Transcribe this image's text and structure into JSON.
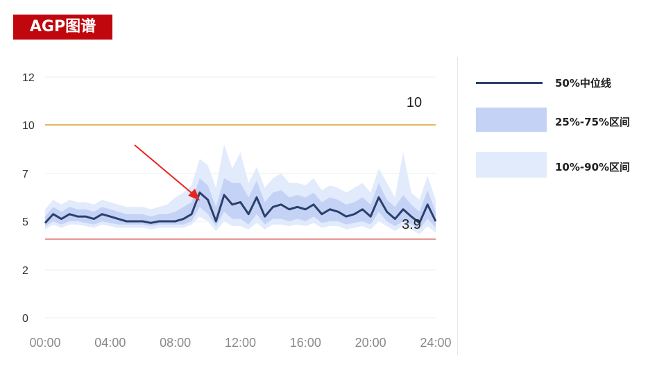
{
  "title": "AGP图谱",
  "colors": {
    "badge": "#c0070d",
    "median": "#2b3f6b",
    "iqr": "#c4d3f5",
    "outer": "#e1ebfc",
    "upper_line": "#e3b85b",
    "lower_line": "#d64a4a",
    "arrow": "#e8251d"
  },
  "legend": {
    "median": "50%中位线",
    "iqr": "25%-75%区间",
    "outer": "10%-90%区间"
  },
  "chart_data": {
    "type": "area",
    "xlabel": "",
    "ylabel": "",
    "x_ticks": [
      "00:00",
      "04:00",
      "08:00",
      "12:00",
      "16:00",
      "20:00",
      "24:00"
    ],
    "y_ticks": [
      "0",
      "2",
      "5",
      "7",
      "10",
      "12"
    ],
    "target_upper": 10,
    "target_lower": 3.9,
    "upper_label": "10",
    "lower_label": "3.9",
    "annotation": "arrow pointing to 09:40 rise",
    "series": [
      {
        "name": "50%中位线",
        "x": [
          "00:00",
          "00:30",
          "01:00",
          "01:30",
          "02:00",
          "02:30",
          "03:00",
          "03:30",
          "04:00",
          "04:30",
          "05:00",
          "05:30",
          "06:00",
          "06:30",
          "07:00",
          "07:30",
          "08:00",
          "08:30",
          "09:00",
          "09:30",
          "10:00",
          "10:30",
          "11:00",
          "11:30",
          "12:00",
          "12:30",
          "13:00",
          "13:30",
          "14:00",
          "14:30",
          "15:00",
          "15:30",
          "16:00",
          "16:30",
          "17:00",
          "17:30",
          "18:00",
          "18:30",
          "19:00",
          "19:30",
          "20:00",
          "20:30",
          "21:00",
          "21:30",
          "22:00",
          "22:30",
          "23:00",
          "23:30",
          "24:00"
        ],
        "values": [
          4.9,
          5.3,
          5.1,
          5.3,
          5.2,
          5.2,
          5.1,
          5.3,
          5.2,
          5.1,
          5.0,
          5.0,
          5.0,
          4.9,
          5.0,
          5.0,
          5.0,
          5.1,
          5.3,
          6.2,
          5.9,
          5.0,
          6.1,
          5.7,
          5.8,
          5.3,
          6.0,
          5.2,
          5.6,
          5.7,
          5.5,
          5.6,
          5.5,
          5.7,
          5.3,
          5.5,
          5.4,
          5.2,
          5.3,
          5.5,
          5.2,
          6.0,
          5.4,
          5.1,
          5.5,
          5.2,
          4.9,
          5.7,
          5.0
        ]
      },
      {
        "name": "25%-75%区间",
        "lower": [
          4.7,
          5.0,
          4.8,
          5.0,
          5.0,
          4.9,
          4.8,
          5.0,
          4.9,
          4.8,
          4.8,
          4.8,
          4.8,
          4.7,
          4.8,
          4.8,
          4.8,
          4.8,
          5.0,
          5.6,
          5.3,
          4.7,
          5.4,
          5.1,
          5.1,
          4.8,
          5.3,
          4.8,
          5.1,
          5.1,
          5.0,
          5.1,
          5.0,
          5.2,
          4.9,
          5.0,
          5.0,
          4.8,
          4.9,
          5.0,
          4.8,
          5.4,
          5.0,
          4.7,
          5.0,
          4.8,
          4.5,
          5.1,
          4.6
        ],
        "upper": [
          5.2,
          5.6,
          5.4,
          5.6,
          5.5,
          5.5,
          5.4,
          5.6,
          5.5,
          5.4,
          5.3,
          5.3,
          5.3,
          5.2,
          5.3,
          5.3,
          5.4,
          5.6,
          5.8,
          6.8,
          6.5,
          5.6,
          6.8,
          6.6,
          6.6,
          6.0,
          6.7,
          5.8,
          6.2,
          6.3,
          6.0,
          6.1,
          6.0,
          6.2,
          5.8,
          6.0,
          5.9,
          5.7,
          5.8,
          6.0,
          5.7,
          6.6,
          5.9,
          5.6,
          6.1,
          5.7,
          5.4,
          6.3,
          5.4
        ]
      },
      {
        "name": "10%-90%区间",
        "lower": [
          4.5,
          4.8,
          4.6,
          4.8,
          4.8,
          4.7,
          4.6,
          4.8,
          4.7,
          4.6,
          4.6,
          4.6,
          4.6,
          4.5,
          4.6,
          4.6,
          4.6,
          4.6,
          4.8,
          5.2,
          5.0,
          4.4,
          5.0,
          4.7,
          4.7,
          4.5,
          4.9,
          4.5,
          4.8,
          4.8,
          4.7,
          4.8,
          4.7,
          4.9,
          4.6,
          4.7,
          4.7,
          4.5,
          4.6,
          4.7,
          4.5,
          5.0,
          4.7,
          4.4,
          4.7,
          4.5,
          4.2,
          4.7,
          4.3
        ],
        "upper": [
          5.5,
          5.9,
          5.7,
          5.9,
          5.8,
          5.8,
          5.7,
          5.9,
          5.8,
          5.7,
          5.6,
          5.6,
          5.6,
          5.5,
          5.6,
          5.7,
          6.0,
          6.2,
          6.5,
          7.9,
          7.5,
          6.4,
          8.8,
          7.3,
          8.3,
          6.6,
          7.4,
          6.4,
          6.8,
          7.0,
          6.6,
          6.6,
          6.5,
          6.8,
          6.3,
          6.5,
          6.4,
          6.2,
          6.4,
          6.6,
          6.2,
          7.3,
          6.6,
          6.0,
          8.3,
          6.2,
          5.9,
          6.9,
          5.9
        ]
      }
    ]
  }
}
